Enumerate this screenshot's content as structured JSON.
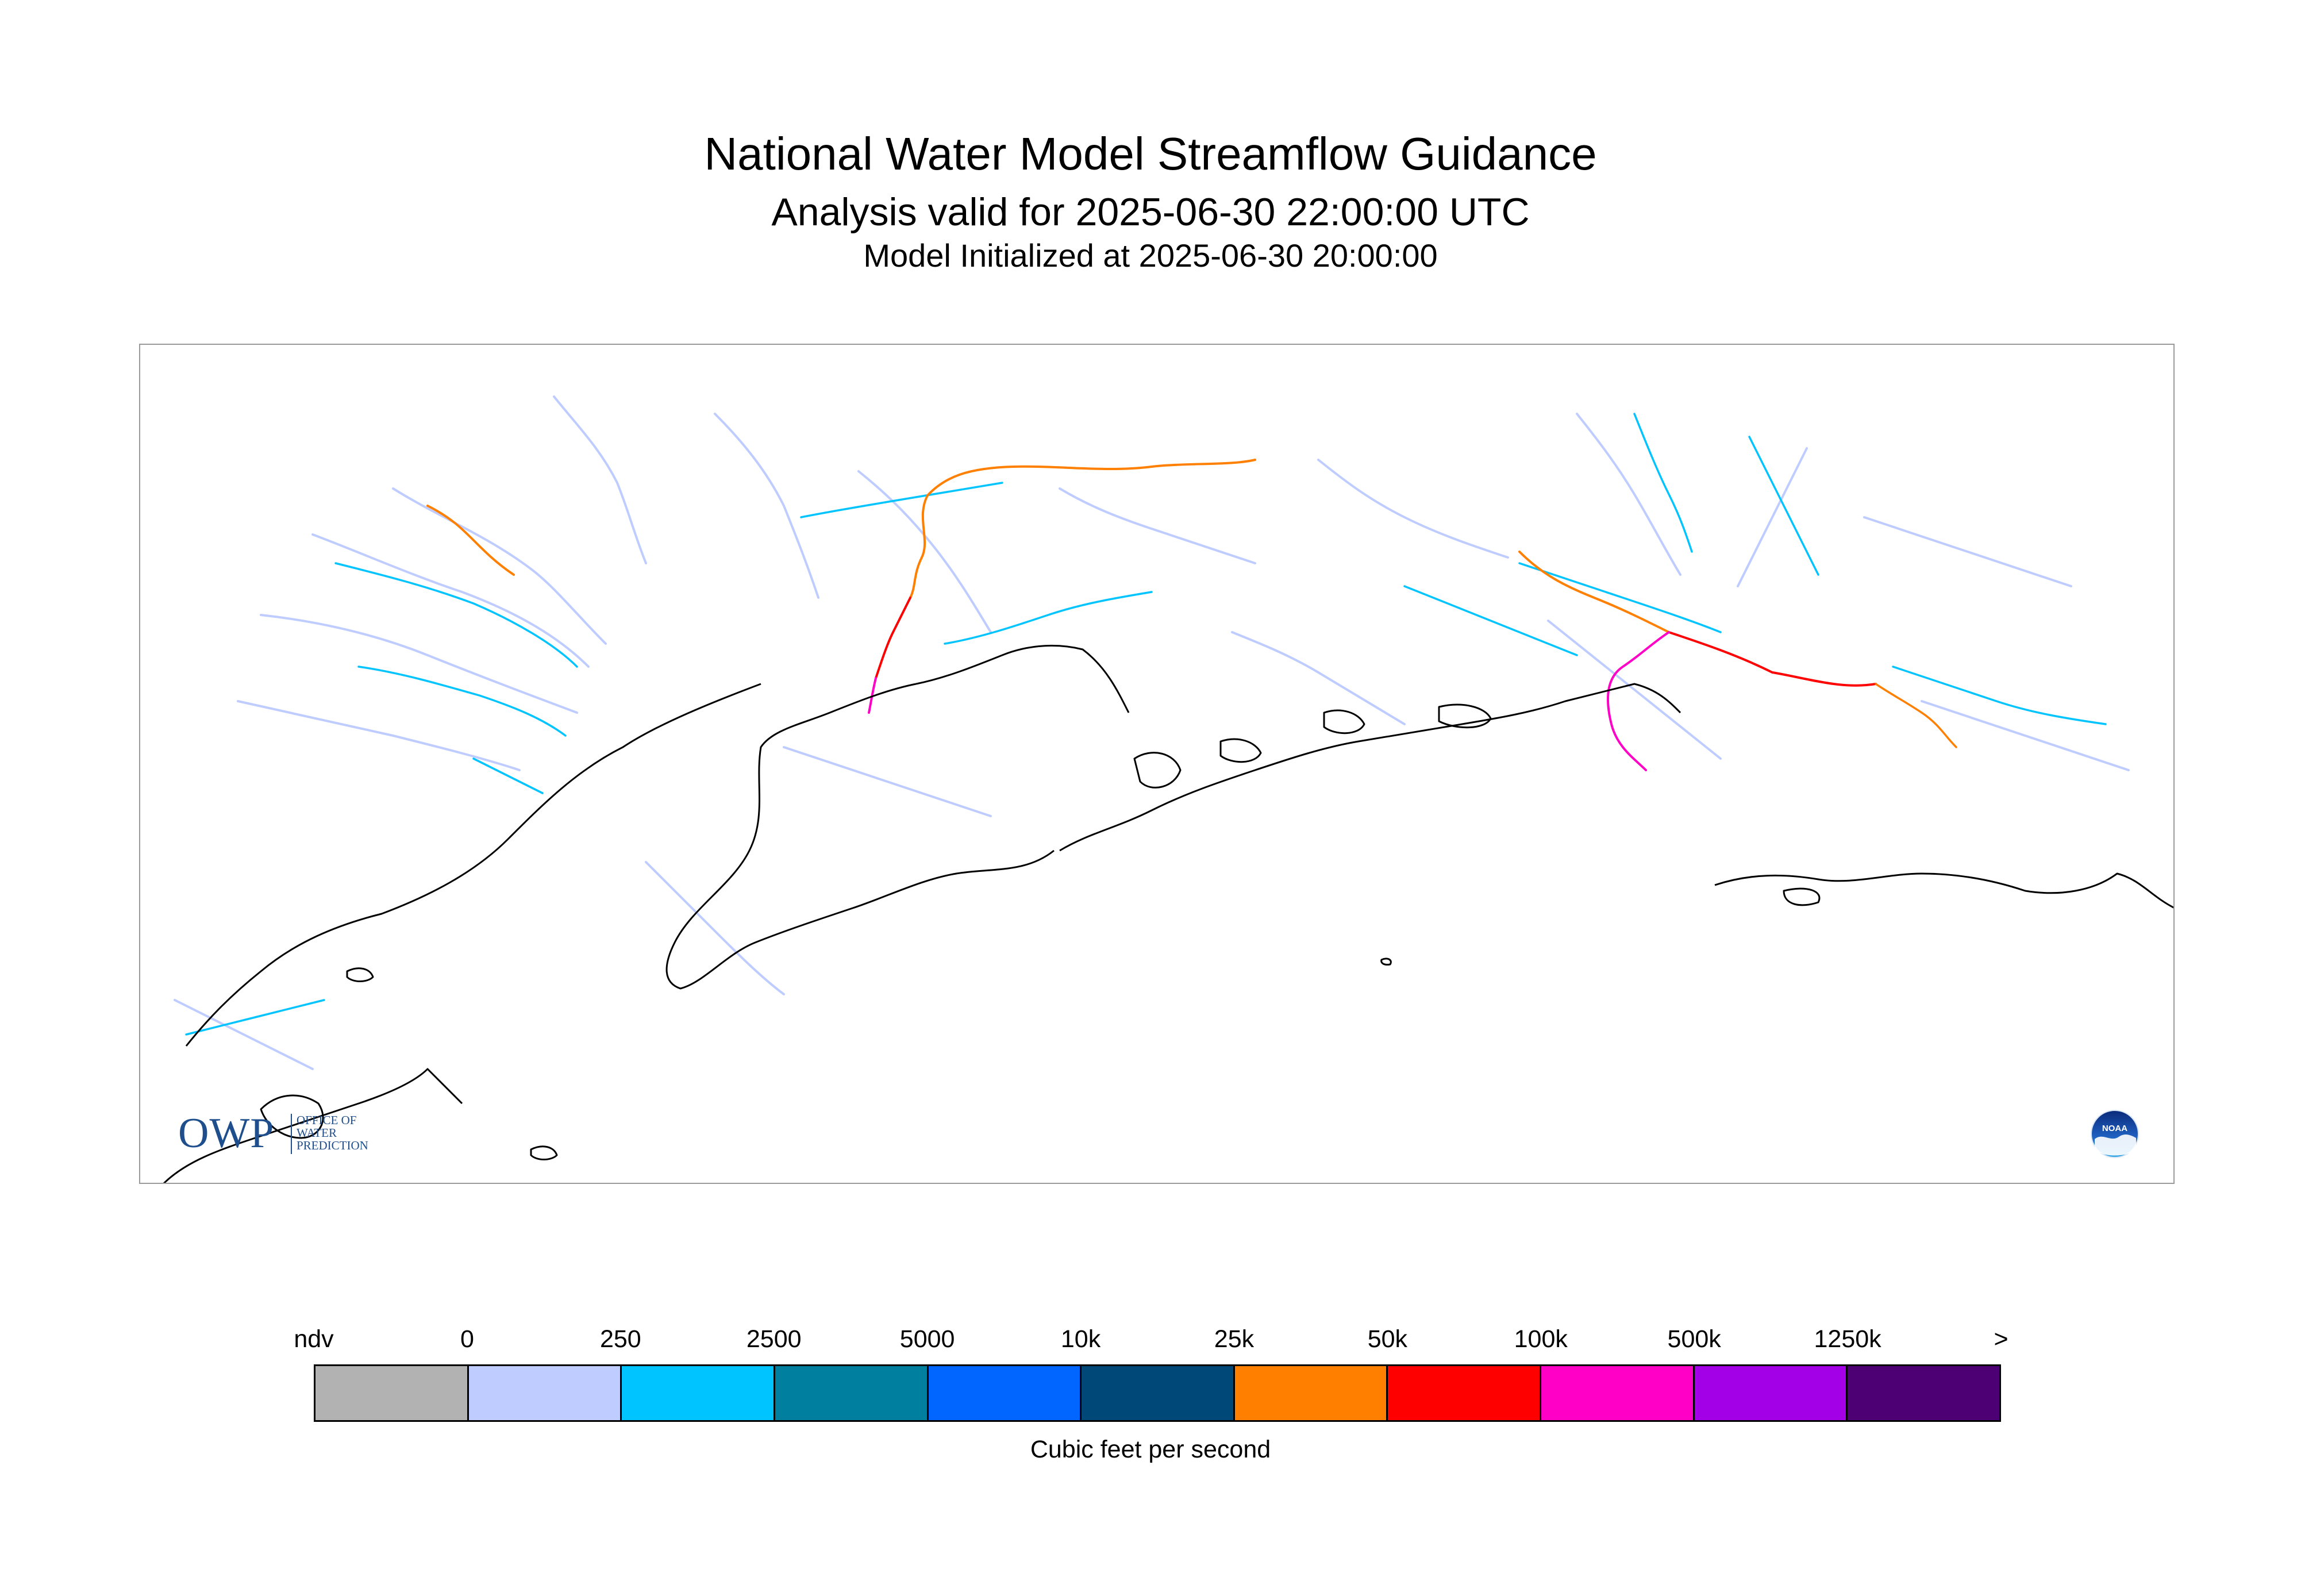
{
  "header": {
    "title": "National Water Model Streamflow Guidance",
    "subtitle": "Analysis valid for 2025-06-30 22:00:00 UTC",
    "init_line": "Model Initialized at 2025-06-30 20:00:00"
  },
  "logos": {
    "owp_mark": "OWP",
    "owp_text": [
      "OFFICE OF",
      "WATER",
      "PREDICTION"
    ],
    "noaa_text": "NOAA"
  },
  "legend": {
    "tick_labels": [
      "ndv",
      "0",
      "250",
      "2500",
      "5000",
      "10k",
      "25k",
      "50k",
      "100k",
      "500k",
      "1250k",
      ">"
    ],
    "colors": [
      "#b2b2b2",
      "#bfccff",
      "#00c4ff",
      "#007f9e",
      "#0066ff",
      "#004878",
      "#ff7f00",
      "#ff0000",
      "#ff00c7",
      "#a400e8",
      "#4c0073"
    ],
    "units": "Cubic feet per second"
  },
  "map": {
    "region": "Southcentral Alaska",
    "coastline_color": "#000000",
    "frame_color": "#9a9a9a",
    "river_color_low": "#bfccff",
    "river_color_mid": "#00c4ff",
    "river_color_high": "#ff7f00"
  }
}
